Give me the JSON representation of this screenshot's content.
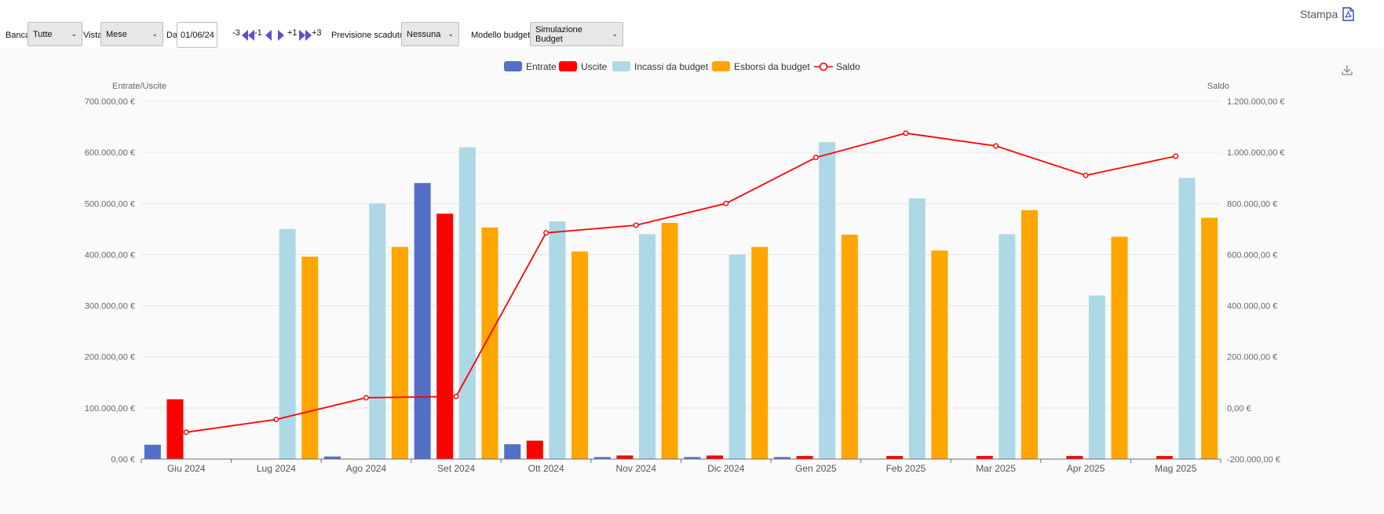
{
  "toolbar": {
    "bank_label": "Banca",
    "bank_value": "Tutte",
    "view_label": "Vista",
    "view_value": "Mese",
    "from_label": "Da",
    "from_value": "01/06/24",
    "nav_minus3": "-3",
    "nav_minus1": "-1",
    "nav_plus1": "+1",
    "nav_plus3": "+3",
    "expired_label": "Previsione scaduto:",
    "expired_value": "Nessuna",
    "model_label": "Modello budget:",
    "model_value": "Simulazione Budget",
    "print_label": "Stampa"
  },
  "icons": {
    "print": "pdf-file-icon",
    "download": "download-icon",
    "nav_back3": "double-triangle-left-icon",
    "nav_back1": "triangle-left-icon",
    "nav_fwd1": "triangle-right-icon",
    "nav_fwd3": "double-triangle-right-icon"
  },
  "colors": {
    "entrate": "#5470c6",
    "uscite": "#ff0000",
    "incassi": "#add8e6",
    "esborsi": "#ffa500",
    "saldo": "#ff0000",
    "nav_icon": "#5b4fd6"
  },
  "chart_data": {
    "type": "bar",
    "categories": [
      "Giu 2024",
      "Lug 2024",
      "Ago 2024",
      "Set 2024",
      "Ott 2024",
      "Nov 2024",
      "Dic 2024",
      "Gen 2025",
      "Feb 2025",
      "Mar 2025",
      "Apr 2025",
      "Mag 2025"
    ],
    "ylabel": "Entrate/Uscite",
    "ylabel_right": "Saldo",
    "ylim": [
      0,
      700000
    ],
    "ylim_right": [
      -200000,
      1200000
    ],
    "yticks": [
      "0,00 €",
      "100.000,00 €",
      "200.000,00 €",
      "300.000,00 €",
      "400.000,00 €",
      "500.000,00 €",
      "600.000,00 €",
      "700.000,00 €"
    ],
    "yticks_right": [
      "-200.000,00 €",
      "0,00 €",
      "200.000,00 €",
      "400.000,00 €",
      "600.000,00 €",
      "800.000,00 €",
      "1.000.000,00 €",
      "1.200.000,00 €"
    ],
    "legend_position": "top-center",
    "grid": true,
    "series": [
      {
        "name": "Entrate",
        "type": "bar",
        "axis": "left",
        "values": [
          28000,
          0,
          5000,
          540000,
          29000,
          4000,
          4000,
          4000,
          0,
          0,
          0,
          0
        ]
      },
      {
        "name": "Uscite",
        "type": "bar",
        "axis": "left",
        "values": [
          117000,
          0,
          0,
          480000,
          36000,
          7000,
          7000,
          6000,
          6000,
          6000,
          6000,
          6000
        ]
      },
      {
        "name": "Incassi da budget",
        "type": "bar",
        "axis": "left",
        "values": [
          0,
          450000,
          500000,
          610000,
          465000,
          440000,
          400000,
          620000,
          510000,
          440000,
          320000,
          550000
        ]
      },
      {
        "name": "Esborsi da budget",
        "type": "bar",
        "axis": "left",
        "values": [
          0,
          396000,
          415000,
          453000,
          406000,
          462000,
          415000,
          439000,
          408000,
          487000,
          435000,
          472000
        ]
      },
      {
        "name": "Saldo",
        "type": "line",
        "axis": "right",
        "values": [
          -95000,
          -45000,
          40000,
          45000,
          685000,
          715000,
          800000,
          980000,
          1075000,
          1025000,
          910000,
          985000
        ]
      }
    ]
  }
}
